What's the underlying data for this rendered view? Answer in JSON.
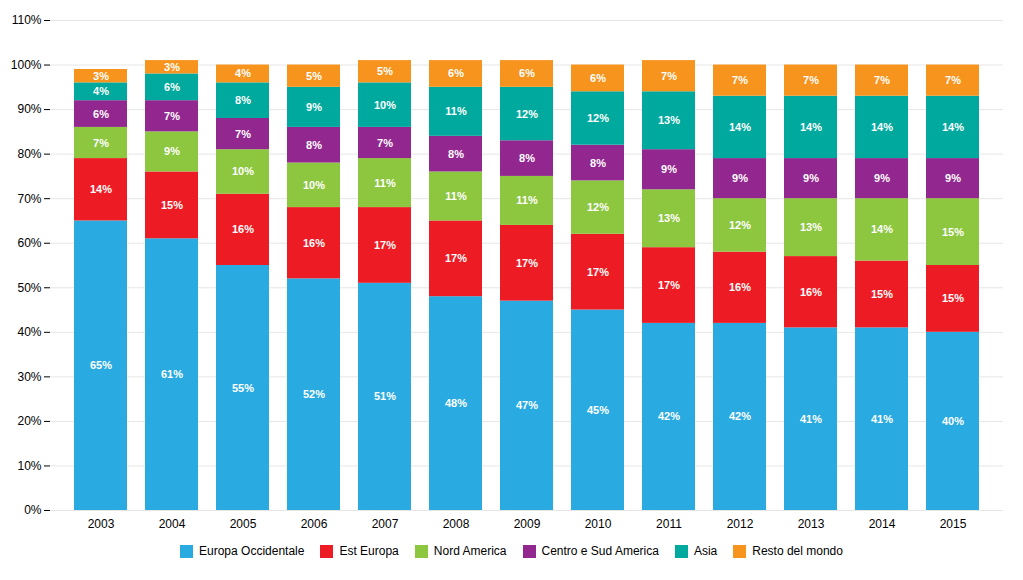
{
  "chart_data": {
    "type": "bar",
    "stacked": true,
    "categories": [
      "2003",
      "2004",
      "2005",
      "2006",
      "2007",
      "2008",
      "2009",
      "2010",
      "2011",
      "2012",
      "2013",
      "2014",
      "2015"
    ],
    "series": [
      {
        "name": "Europa Occidentale",
        "color": "#29ABE2",
        "values": [
          65,
          61,
          55,
          52,
          51,
          48,
          47,
          45,
          42,
          42,
          41,
          41,
          40
        ],
        "value_labels": [
          "65%",
          "61%",
          "55%",
          "52%",
          "51%",
          "48%",
          "47%",
          "45%",
          "42%",
          "42%",
          "41%",
          "41%",
          "40%"
        ]
      },
      {
        "name": "Est Europa",
        "color": "#ED1C24",
        "values": [
          14,
          15,
          16,
          16,
          17,
          17,
          17,
          17,
          17,
          16,
          16,
          15,
          15
        ],
        "value_labels": [
          "14%",
          "15%",
          "16%",
          "16%",
          "17%",
          "17%",
          "17%",
          "17%",
          "17%",
          "16%",
          "16%",
          "15%",
          "15%"
        ]
      },
      {
        "name": "Nord America",
        "color": "#8DC63F",
        "values": [
          7,
          9,
          10,
          10,
          11,
          11,
          11,
          12,
          13,
          12,
          13,
          14,
          15
        ],
        "value_labels": [
          "7%",
          "9%",
          "10%",
          "10%",
          "11%",
          "11%",
          "11%",
          "12%",
          "13%",
          "12%",
          "13%",
          "14%",
          "15%"
        ]
      },
      {
        "name": "Centro e Sud America",
        "color": "#92278F",
        "values": [
          6,
          7,
          7,
          8,
          7,
          8,
          8,
          8,
          9,
          9,
          9,
          9,
          9
        ],
        "value_labels": [
          "6%",
          "7%",
          "7%",
          "8%",
          "7%",
          "8%",
          "8%",
          "8%",
          "9%",
          "9%",
          "9%",
          "9%",
          "9%"
        ]
      },
      {
        "name": "Asia",
        "color": "#00A99D",
        "values": [
          4,
          6,
          8,
          9,
          10,
          11,
          12,
          12,
          13,
          14,
          14,
          14,
          14
        ],
        "value_labels": [
          "4%",
          "6%",
          "8%",
          "9%",
          "10%",
          "11%",
          "12%",
          "12%",
          "13%",
          "14%",
          "14%",
          "14%",
          "14%"
        ]
      },
      {
        "name": "Resto del mondo",
        "color": "#F7941D",
        "values": [
          3,
          3,
          4,
          5,
          5,
          6,
          6,
          6,
          7,
          7,
          7,
          7,
          7
        ],
        "value_labels": [
          "3%",
          "3%",
          "4%",
          "5%",
          "5%",
          "6%",
          "6%",
          "6%",
          "7%",
          "7%",
          "7%",
          "7%",
          "7%"
        ]
      }
    ],
    "ylim": [
      0,
      110
    ],
    "yticks": [
      {
        "value": 0,
        "label": "0%"
      },
      {
        "value": 10,
        "label": "10%"
      },
      {
        "value": 20,
        "label": "20%"
      },
      {
        "value": 30,
        "label": "30%"
      },
      {
        "value": 40,
        "label": "40%"
      },
      {
        "value": 50,
        "label": "50%"
      },
      {
        "value": 60,
        "label": "60%"
      },
      {
        "value": 70,
        "label": "70%"
      },
      {
        "value": 80,
        "label": "80%"
      },
      {
        "value": 90,
        "label": "90%"
      },
      {
        "value": 100,
        "label": "100%"
      },
      {
        "value": 110,
        "label": "110%"
      }
    ],
    "grid": true,
    "data_labels": true,
    "legend": "bottom"
  }
}
